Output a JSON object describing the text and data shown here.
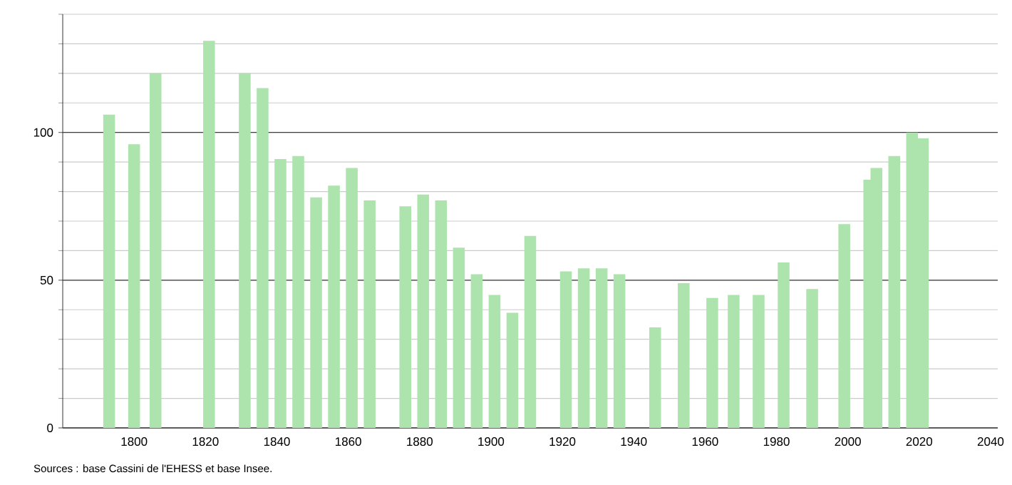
{
  "chart_data": {
    "type": "bar",
    "x": [
      1793,
      1800,
      1806,
      1821,
      1831,
      1836,
      1841,
      1846,
      1851,
      1856,
      1861,
      1866,
      1876,
      1881,
      1886,
      1891,
      1896,
      1901,
      1906,
      1911,
      1921,
      1926,
      1931,
      1936,
      1946,
      1954,
      1962,
      1968,
      1975,
      1982,
      1990,
      1999,
      2006,
      2008,
      2013,
      2018,
      2021
    ],
    "values": [
      106,
      96,
      120,
      131,
      120,
      115,
      91,
      92,
      78,
      82,
      88,
      77,
      75,
      79,
      77,
      61,
      52,
      45,
      39,
      65,
      53,
      54,
      54,
      52,
      34,
      49,
      44,
      45,
      45,
      56,
      47,
      69,
      84,
      88,
      92,
      100,
      98
    ],
    "color": "#ade3ad",
    "xlim": [
      1780,
      2042
    ],
    "xticks": [
      1800,
      1820,
      1840,
      1860,
      1880,
      1900,
      1920,
      1940,
      1960,
      1980,
      2000,
      2020,
      2040
    ],
    "ylim": [
      0,
      140
    ],
    "yticks": [
      0,
      {
        "value": 10,
        "label": null
      },
      {
        "value": 20,
        "label": null
      },
      {
        "value": 30,
        "label": null
      },
      {
        "value": 40,
        "label": null
      },
      50,
      {
        "value": 60,
        "label": null
      },
      {
        "value": 70,
        "label": null
      },
      {
        "value": 80,
        "label": null
      },
      {
        "value": 90,
        "label": null
      },
      100,
      {
        "value": 110,
        "label": null
      },
      {
        "value": 120,
        "label": null
      },
      {
        "value": 130,
        "label": null
      },
      {
        "value": 140,
        "label": null
      }
    ],
    "grid": "y",
    "annotations": [
      "Sources : base Cassini de l'EHESS et base Insee."
    ]
  }
}
